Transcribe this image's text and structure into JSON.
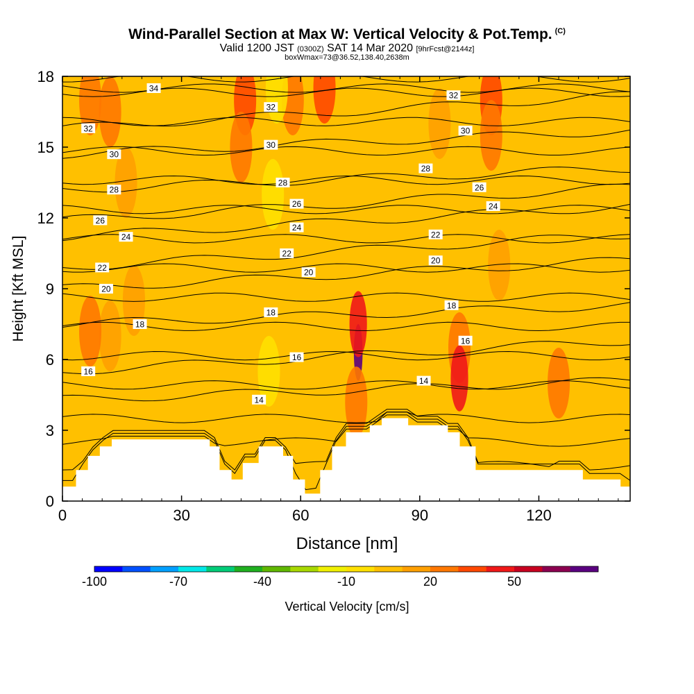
{
  "header": {
    "title": "Wind-Parallel Section at Max W: Vertical Velocity & Pot.Temp.",
    "copyright_mark": "(C)",
    "valid_prefix": "Valid 1200 JST",
    "valid_utc": "(0300Z)",
    "valid_date": "SAT 14 Mar 2020",
    "forecast_info": "[9hrFcst@2144z]",
    "box_info": "boxWmax=73@36.52,138.40,2638m"
  },
  "chart_data": {
    "type": "heatmap",
    "xlabel": "Distance [nm]",
    "ylabel": "Height [Kft MSL]",
    "xlim": [
      0,
      143
    ],
    "ylim": [
      0,
      18
    ],
    "x_ticks": [
      0,
      30,
      60,
      90,
      120
    ],
    "y_ticks": [
      0,
      3,
      6,
      9,
      12,
      15,
      18
    ],
    "colorbar": {
      "label": "Vertical Velocity [cm/s]",
      "tick_labels": [
        "-100",
        "-70",
        "-40",
        "-10",
        "20",
        "50"
      ],
      "tick_values": [
        -100,
        -70,
        -40,
        -10,
        20,
        50
      ],
      "levels": [
        -100,
        -90,
        -80,
        -70,
        -60,
        -50,
        -40,
        -30,
        -20,
        -10,
        0,
        10,
        20,
        30,
        40,
        50,
        60,
        70
      ],
      "colors": [
        "#0000ff",
        "#0050ff",
        "#00a0ff",
        "#00e8e8",
        "#00cc78",
        "#20b020",
        "#60b800",
        "#a8d800",
        "#f0f000",
        "#ffe000",
        "#ffc000",
        "#ffa000",
        "#ff7800",
        "#ff4800",
        "#f01818",
        "#c80020",
        "#8c0050",
        "#5a0080"
      ]
    },
    "background_field": {
      "value": 10,
      "color": "#ffc000"
    },
    "velocity_features": [
      {
        "x": 12,
        "y": 16.5,
        "value": 22
      },
      {
        "x": 16,
        "y": 13.5,
        "value": 12
      },
      {
        "x": 7,
        "y": 17,
        "value": 25
      },
      {
        "x": 46,
        "y": 17,
        "value": 32
      },
      {
        "x": 45,
        "y": 15,
        "value": 20
      },
      {
        "x": 58,
        "y": 17,
        "value": 22
      },
      {
        "x": 66,
        "y": 17.5,
        "value": 35
      },
      {
        "x": 54,
        "y": 17.5,
        "value": -6
      },
      {
        "x": 53,
        "y": 13,
        "value": -4
      },
      {
        "x": 22,
        "y": 14,
        "value": 2
      },
      {
        "x": 57,
        "y": 10,
        "value": 2
      },
      {
        "x": 33,
        "y": 8,
        "value": 1
      },
      {
        "x": 52,
        "y": 5.5,
        "value": -4
      },
      {
        "x": 72,
        "y": 12,
        "value": 3
      },
      {
        "x": 95,
        "y": 16,
        "value": 18
      },
      {
        "x": 108,
        "y": 17,
        "value": 30
      },
      {
        "x": 108,
        "y": 15.5,
        "value": 20
      },
      {
        "x": 110,
        "y": 10,
        "value": 10
      },
      {
        "x": 18,
        "y": 8.5,
        "value": 16
      },
      {
        "x": 12,
        "y": 7,
        "value": 18
      },
      {
        "x": 7,
        "y": 7.2,
        "value": 28
      },
      {
        "x": 88,
        "y": 8,
        "value": 2
      },
      {
        "x": 100,
        "y": 6.5,
        "value": 28
      },
      {
        "x": 100,
        "y": 5.2,
        "value": 42
      },
      {
        "x": 125,
        "y": 5,
        "value": 20
      },
      {
        "x": 135,
        "y": 9,
        "value": 6
      },
      {
        "x": 137,
        "y": 16,
        "value": 4
      },
      {
        "x": 74.5,
        "y": 6.3,
        "value": 73
      },
      {
        "x": 74.5,
        "y": 7.5,
        "value": 45
      },
      {
        "x": 74,
        "y": 4.2,
        "value": 25
      },
      {
        "x": 85,
        "y": 2.7,
        "value": 8
      },
      {
        "x": 25,
        "y": 3.5,
        "value": 5
      },
      {
        "x": 110,
        "y": 2,
        "value": 4
      }
    ],
    "theta_contours": {
      "labels": [
        "14",
        "16",
        "18",
        "20",
        "22",
        "24",
        "26",
        "28",
        "30",
        "32",
        "34"
      ],
      "label_positions": [
        {
          "text": "16",
          "x": 6.5,
          "y": 5.5
        },
        {
          "text": "18",
          "x": 19.5,
          "y": 7.5
        },
        {
          "text": "20",
          "x": 11,
          "y": 9.0
        },
        {
          "text": "22",
          "x": 10,
          "y": 9.9
        },
        {
          "text": "24",
          "x": 16,
          "y": 11.2
        },
        {
          "text": "26",
          "x": 9.5,
          "y": 11.9
        },
        {
          "text": "28",
          "x": 13,
          "y": 13.2
        },
        {
          "text": "30",
          "x": 13,
          "y": 14.7
        },
        {
          "text": "32",
          "x": 6.5,
          "y": 15.8
        },
        {
          "text": "34",
          "x": 23,
          "y": 17.5
        },
        {
          "text": "14",
          "x": 49.5,
          "y": 4.3
        },
        {
          "text": "16",
          "x": 59,
          "y": 6.1
        },
        {
          "text": "18",
          "x": 52.5,
          "y": 8.0
        },
        {
          "text": "20",
          "x": 62,
          "y": 9.7
        },
        {
          "text": "22",
          "x": 56.5,
          "y": 10.5
        },
        {
          "text": "24",
          "x": 59,
          "y": 11.6
        },
        {
          "text": "26",
          "x": 59,
          "y": 12.6
        },
        {
          "text": "28",
          "x": 55.5,
          "y": 13.5
        },
        {
          "text": "30",
          "x": 52.5,
          "y": 15.1
        },
        {
          "text": "32",
          "x": 52.5,
          "y": 16.7
        },
        {
          "text": "14",
          "x": 91,
          "y": 5.1
        },
        {
          "text": "16",
          "x": 101.5,
          "y": 6.8
        },
        {
          "text": "18",
          "x": 98,
          "y": 8.3
        },
        {
          "text": "20",
          "x": 94,
          "y": 10.2
        },
        {
          "text": "22",
          "x": 94,
          "y": 11.3
        },
        {
          "text": "24",
          "x": 108.5,
          "y": 12.5
        },
        {
          "text": "26",
          "x": 105,
          "y": 13.3
        },
        {
          "text": "28",
          "x": 91.5,
          "y": 14.1
        },
        {
          "text": "30",
          "x": 101.5,
          "y": 15.7
        },
        {
          "text": "32",
          "x": 98.5,
          "y": 17.2
        }
      ]
    },
    "terrain": [
      [
        0,
        0.6
      ],
      [
        3.5,
        0.6
      ],
      [
        3.5,
        1.3
      ],
      [
        6.5,
        1.3
      ],
      [
        6.5,
        1.9
      ],
      [
        9.5,
        1.9
      ],
      [
        9.5,
        2.3
      ],
      [
        12.5,
        2.3
      ],
      [
        12.5,
        2.6
      ],
      [
        37,
        2.6
      ],
      [
        37,
        2.3
      ],
      [
        39.5,
        2.3
      ],
      [
        39.5,
        1.3
      ],
      [
        42.5,
        1.3
      ],
      [
        42.5,
        0.9
      ],
      [
        45.5,
        0.9
      ],
      [
        45.5,
        1.6
      ],
      [
        49.5,
        1.6
      ],
      [
        49.5,
        2.3
      ],
      [
        55.5,
        2.3
      ],
      [
        55.5,
        1.9
      ],
      [
        58,
        1.9
      ],
      [
        58,
        0.9
      ],
      [
        61,
        0.9
      ],
      [
        61,
        0.3
      ],
      [
        65,
        0.3
      ],
      [
        65,
        1.3
      ],
      [
        68,
        1.3
      ],
      [
        68,
        2.3
      ],
      [
        71.5,
        2.3
      ],
      [
        71.5,
        2.9
      ],
      [
        77.5,
        2.9
      ],
      [
        77.5,
        3.2
      ],
      [
        80.5,
        3.2
      ],
      [
        80.5,
        3.5
      ],
      [
        87,
        3.5
      ],
      [
        87,
        3.2
      ],
      [
        97,
        3.2
      ],
      [
        97,
        2.9
      ],
      [
        100,
        2.9
      ],
      [
        100,
        2.3
      ],
      [
        104,
        2.3
      ],
      [
        104,
        1.3
      ],
      [
        131,
        1.3
      ],
      [
        131,
        0.9
      ],
      [
        140.5,
        0.9
      ],
      [
        140.5,
        0.6
      ],
      [
        143,
        0.6
      ]
    ]
  }
}
